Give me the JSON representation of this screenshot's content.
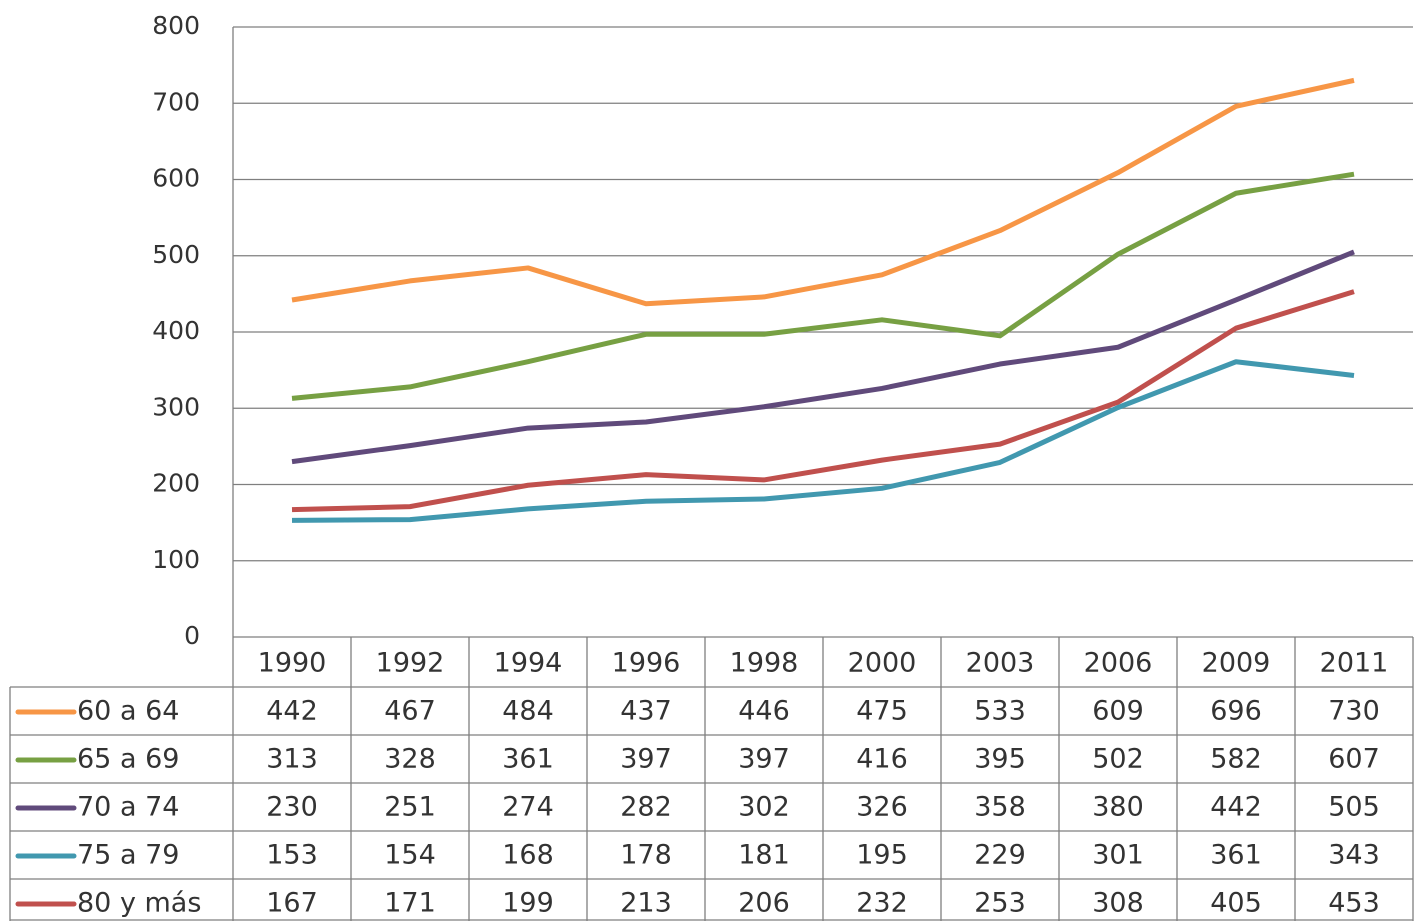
{
  "chart_data": {
    "type": "line",
    "categories": [
      "1990",
      "1992",
      "1994",
      "1996",
      "1998",
      "2000",
      "2003",
      "2006",
      "2009",
      "2011"
    ],
    "series": [
      {
        "name": "60 a 64",
        "color": "#f79646",
        "values": [
          442,
          467,
          484,
          437,
          446,
          475,
          533,
          609,
          696,
          730
        ]
      },
      {
        "name": "65 a 69",
        "color": "#77a043",
        "values": [
          313,
          328,
          361,
          397,
          397,
          416,
          395,
          502,
          582,
          607
        ]
      },
      {
        "name": "70 a 74",
        "color": "#604a7b",
        "values": [
          230,
          251,
          274,
          282,
          302,
          326,
          358,
          380,
          442,
          505
        ]
      },
      {
        "name": "75 a 79",
        "color": "#4198af",
        "values": [
          153,
          154,
          168,
          178,
          181,
          195,
          229,
          301,
          361,
          343
        ]
      },
      {
        "name": "80 y más",
        "color": "#c0504d",
        "values": [
          167,
          171,
          199,
          213,
          206,
          232,
          253,
          308,
          405,
          453
        ]
      }
    ],
    "ylim": [
      0,
      800
    ],
    "yticks": [
      0,
      100,
      200,
      300,
      400,
      500,
      600,
      700,
      800
    ],
    "grid": true,
    "data_table": true
  }
}
